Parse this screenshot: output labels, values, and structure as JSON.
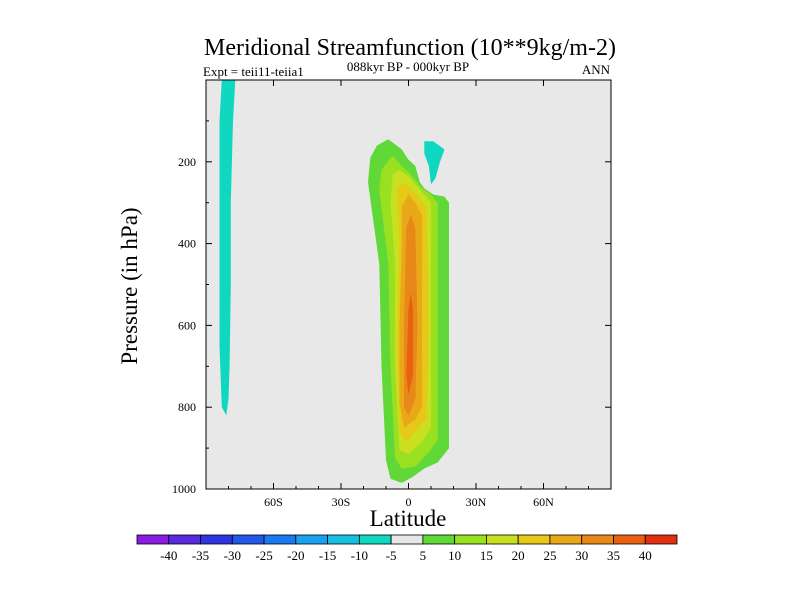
{
  "chart_data": {
    "type": "contour",
    "title": "Meridional Streamfunction (10**9kg/m-2)",
    "subtitle": "088kyr BP - 000kyr BP",
    "left_label": "Expt = teii11-teiia1",
    "right_label": "ANN",
    "xlabel": "Latitude",
    "ylabel": "Pressure (in hPa)",
    "xlim": [
      -90,
      90
    ],
    "ylim": [
      1000,
      0
    ],
    "xticks": [
      -60,
      -30,
      0,
      30,
      60
    ],
    "xtick_labels": [
      "60S",
      "30S",
      "0",
      "30N",
      "60N"
    ],
    "yticks": [
      200,
      400,
      600,
      800,
      1000
    ],
    "ytick_labels": [
      "200",
      "400",
      "600",
      "800",
      "1000"
    ],
    "background_color": "#e8e8e8",
    "colorbar": {
      "labels": [
        "-40",
        "-35",
        "-30",
        "-25",
        "-20",
        "-15",
        "-10",
        "-5",
        "5",
        "10",
        "15",
        "20",
        "25",
        "30",
        "35",
        "40"
      ],
      "colors": [
        "#8a1be0",
        "#5a2ae0",
        "#3034e0",
        "#2258e8",
        "#1a78f0",
        "#1aa0f0",
        "#18c0e0",
        "#10d8c0",
        "#e6e6e6",
        "#60d838",
        "#98e020",
        "#c8e020",
        "#e6c818",
        "#e8a818",
        "#e88818",
        "#e86010",
        "#e03010"
      ]
    },
    "regions": [
      {
        "level": "-5 to -10",
        "color": "#10d8c0",
        "points": [
          [
            -83,
            0
          ],
          [
            -77,
            0
          ],
          [
            -78,
            100
          ],
          [
            -79,
            300
          ],
          [
            -79,
            500
          ],
          [
            -79.5,
            700
          ],
          [
            -80,
            780
          ],
          [
            -81,
            820
          ],
          [
            -83,
            800
          ],
          [
            -84,
            650
          ],
          [
            -84,
            400
          ],
          [
            -84,
            100
          ]
        ]
      },
      {
        "level": "-5 to -10",
        "color": "#10d8c0",
        "points": [
          [
            7,
            150
          ],
          [
            11,
            150
          ],
          [
            16,
            170
          ],
          [
            14,
            200
          ],
          [
            12,
            240
          ],
          [
            10,
            255
          ],
          [
            9,
            210
          ],
          [
            7,
            180
          ]
        ]
      },
      {
        "level": "5 to 10",
        "color": "#60d838",
        "points": [
          [
            -14,
            160
          ],
          [
            -9,
            145
          ],
          [
            -3,
            170
          ],
          [
            0,
            195
          ],
          [
            3,
            210
          ],
          [
            5,
            250
          ],
          [
            7,
            265
          ],
          [
            11,
            280
          ],
          [
            16,
            285
          ],
          [
            18,
            300
          ],
          [
            18,
            600
          ],
          [
            18,
            900
          ],
          [
            13,
            935
          ],
          [
            7,
            950
          ],
          [
            2,
            970
          ],
          [
            -3,
            985
          ],
          [
            -8,
            975
          ],
          [
            -10,
            930
          ],
          [
            -12,
            700
          ],
          [
            -13,
            450
          ],
          [
            -18,
            250
          ],
          [
            -17,
            190
          ]
        ]
      },
      {
        "level": "10 to 15",
        "color": "#98e020",
        "points": [
          [
            -10,
            205
          ],
          [
            -7,
            185
          ],
          [
            -3,
            210
          ],
          [
            0,
            225
          ],
          [
            3,
            245
          ],
          [
            6,
            265
          ],
          [
            10,
            280
          ],
          [
            13,
            300
          ],
          [
            13,
            600
          ],
          [
            13,
            880
          ],
          [
            9,
            910
          ],
          [
            3,
            945
          ],
          [
            -3,
            950
          ],
          [
            -6,
            925
          ],
          [
            -8,
            700
          ],
          [
            -9,
            450
          ],
          [
            -13,
            270
          ],
          [
            -12,
            220
          ]
        ]
      },
      {
        "level": "15 to 20",
        "color": "#c8e020",
        "points": [
          [
            -7,
            230
          ],
          [
            -4,
            220
          ],
          [
            0,
            235
          ],
          [
            3,
            255
          ],
          [
            7,
            280
          ],
          [
            10,
            300
          ],
          [
            10,
            600
          ],
          [
            10,
            850
          ],
          [
            6,
            885
          ],
          [
            0,
            915
          ],
          [
            -4,
            905
          ],
          [
            -6,
            700
          ],
          [
            -6,
            450
          ],
          [
            -8,
            300
          ]
        ]
      },
      {
        "level": "20 to 25",
        "color": "#e6c818",
        "points": [
          [
            -5,
            265
          ],
          [
            -2,
            250
          ],
          [
            2,
            270
          ],
          [
            5,
            290
          ],
          [
            8,
            310
          ],
          [
            9,
            600
          ],
          [
            8,
            830
          ],
          [
            3,
            860
          ],
          [
            -1,
            885
          ],
          [
            -4,
            860
          ],
          [
            -5,
            650
          ],
          [
            -4,
            400
          ]
        ]
      },
      {
        "level": "25 to 30",
        "color": "#e8a818",
        "points": [
          [
            -3,
            310
          ],
          [
            0,
            280
          ],
          [
            3,
            300
          ],
          [
            6,
            330
          ],
          [
            6,
            600
          ],
          [
            6,
            800
          ],
          [
            3,
            830
          ],
          [
            -2,
            850
          ],
          [
            -4,
            790
          ],
          [
            -4,
            600
          ],
          [
            -3,
            400
          ]
        ]
      },
      {
        "level": "30 to 35",
        "color": "#e88818",
        "points": [
          [
            -1,
            360
          ],
          [
            1,
            330
          ],
          [
            3,
            360
          ],
          [
            4,
            600
          ],
          [
            3,
            780
          ],
          [
            0,
            820
          ],
          [
            -2,
            800
          ],
          [
            -2,
            600
          ]
        ]
      },
      {
        "level": "35 to 40",
        "color": "#e86010",
        "points": [
          [
            0,
            560
          ],
          [
            1,
            520
          ],
          [
            2,
            560
          ],
          [
            2,
            720
          ],
          [
            0,
            770
          ],
          [
            -1,
            720
          ]
        ]
      }
    ]
  }
}
